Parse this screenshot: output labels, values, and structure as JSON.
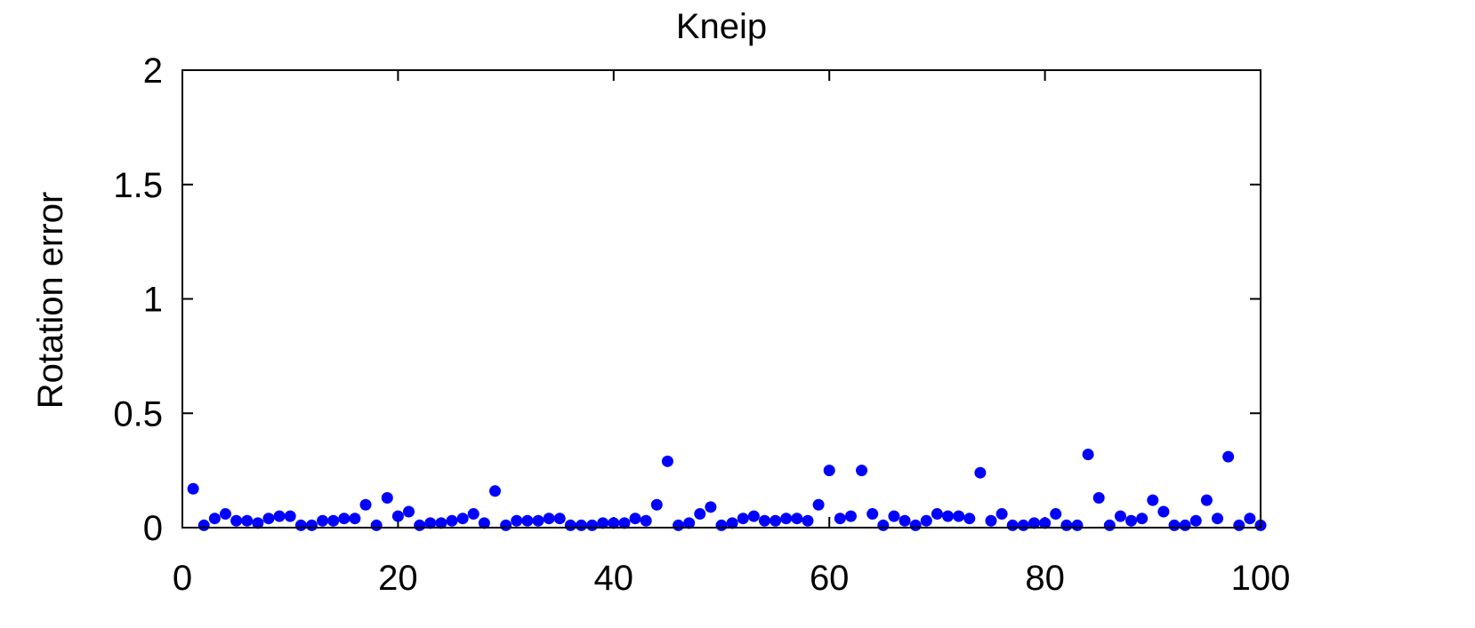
{
  "chart_data": {
    "type": "scatter",
    "title": "Kneip",
    "xlabel": "",
    "ylabel": "Rotation error",
    "xlim": [
      0,
      100
    ],
    "ylim": [
      0,
      2
    ],
    "xticks": [
      0,
      20,
      40,
      60,
      80,
      100
    ],
    "xtick_labels": [
      "0",
      "20",
      "40",
      "60",
      "80",
      "100"
    ],
    "yticks": [
      0,
      0.5,
      1,
      1.5,
      2
    ],
    "ytick_labels": [
      "0",
      "0.5",
      "1",
      "1.5",
      "2"
    ],
    "grid": false,
    "marker_color": "#0000ff",
    "series": [
      {
        "name": "Kneip",
        "x": [
          1,
          2,
          3,
          4,
          5,
          6,
          7,
          8,
          9,
          10,
          11,
          12,
          13,
          14,
          15,
          16,
          17,
          18,
          19,
          20,
          21,
          22,
          23,
          24,
          25,
          26,
          27,
          28,
          29,
          30,
          31,
          32,
          33,
          34,
          35,
          36,
          37,
          38,
          39,
          40,
          41,
          42,
          43,
          44,
          45,
          46,
          47,
          48,
          49,
          50,
          51,
          52,
          53,
          54,
          55,
          56,
          57,
          58,
          59,
          60,
          61,
          62,
          63,
          64,
          65,
          66,
          67,
          68,
          69,
          70,
          71,
          72,
          73,
          74,
          75,
          76,
          77,
          78,
          79,
          80,
          81,
          82,
          83,
          84,
          85,
          86,
          87,
          88,
          89,
          90,
          91,
          92,
          93,
          94,
          95,
          96,
          97,
          98,
          99,
          100
        ],
        "y": [
          0.17,
          0.01,
          0.04,
          0.06,
          0.03,
          0.03,
          0.02,
          0.04,
          0.05,
          0.05,
          0.01,
          0.01,
          0.03,
          0.03,
          0.04,
          0.04,
          0.1,
          0.01,
          0.13,
          0.05,
          0.07,
          0.01,
          0.02,
          0.02,
          0.03,
          0.04,
          0.06,
          0.02,
          0.16,
          0.01,
          0.03,
          0.03,
          0.03,
          0.04,
          0.04,
          0.01,
          0.01,
          0.01,
          0.02,
          0.02,
          0.02,
          0.04,
          0.03,
          0.1,
          0.29,
          0.01,
          0.02,
          0.06,
          0.09,
          0.01,
          0.02,
          0.04,
          0.05,
          0.03,
          0.03,
          0.04,
          0.04,
          0.03,
          0.1,
          0.25,
          0.04,
          0.05,
          0.25,
          0.06,
          0.01,
          0.05,
          0.03,
          0.01,
          0.03,
          0.06,
          0.05,
          0.05,
          0.04,
          0.24,
          0.03,
          0.06,
          0.01,
          0.01,
          0.02,
          0.02,
          0.06,
          0.01,
          0.01,
          0.32,
          0.13,
          0.01,
          0.05,
          0.03,
          0.04,
          0.12,
          0.07,
          0.01,
          0.01,
          0.03,
          0.12,
          0.04,
          0.31,
          0.01,
          0.04,
          0.01
        ]
      }
    ]
  }
}
